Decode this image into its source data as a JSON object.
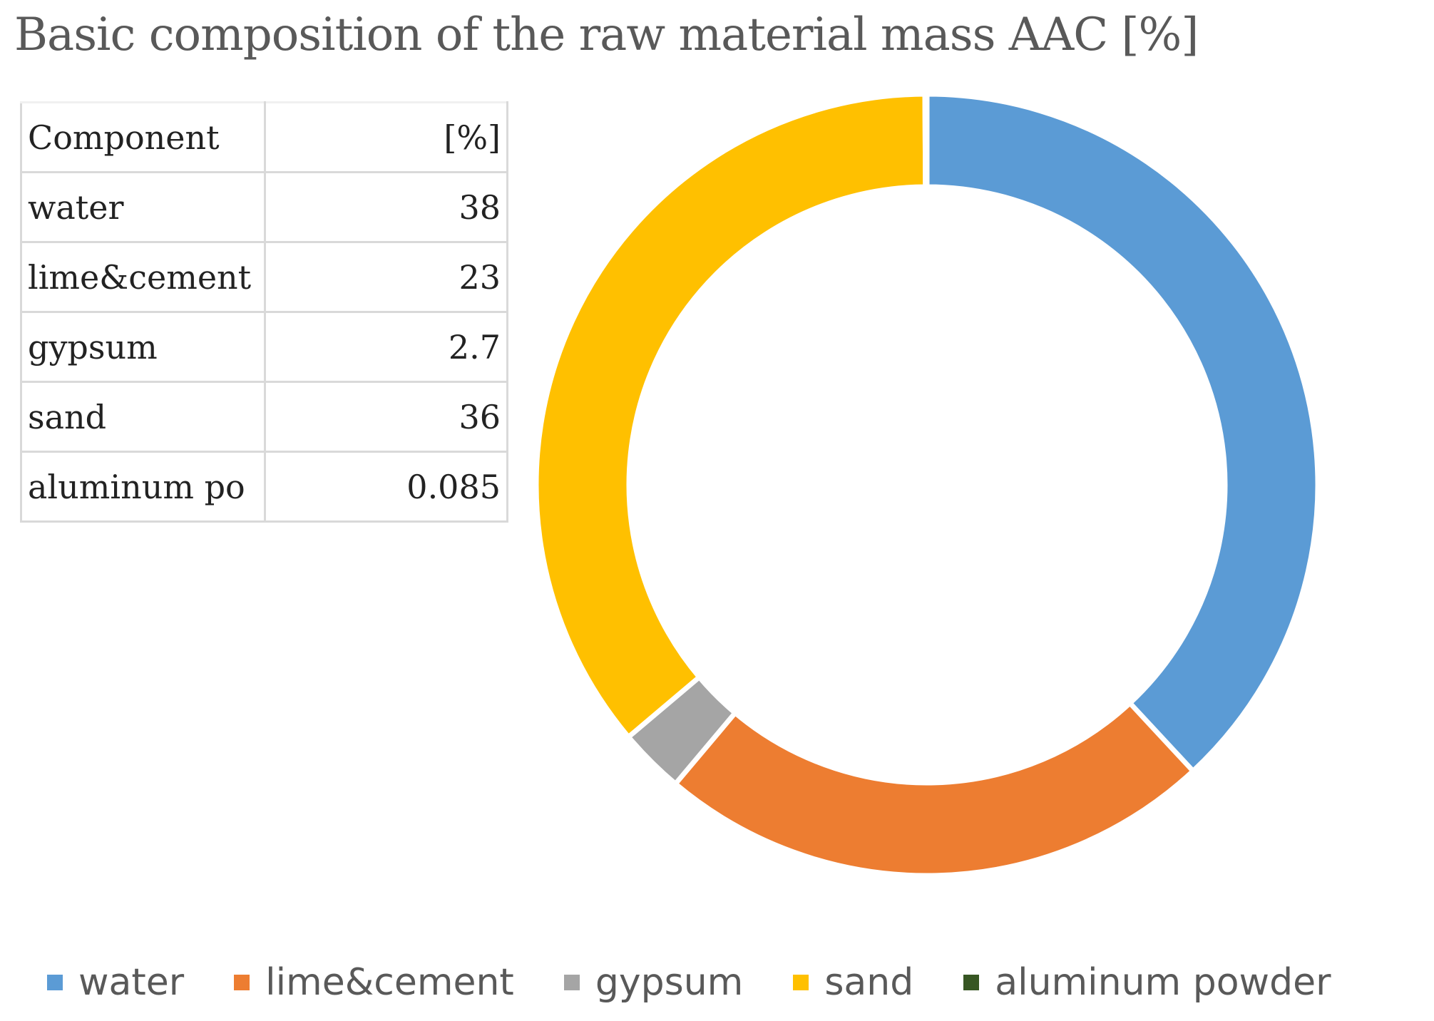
{
  "chart_data": {
    "type": "pie",
    "title": "Basic composition of the raw material mass AAC [%]",
    "table": {
      "header": [
        "Component",
        "[%]"
      ],
      "rows": [
        {
          "name": "water",
          "value": "38"
        },
        {
          "name": "lime&cement",
          "value": "23"
        },
        {
          "name": "gypsum",
          "value": "2.7"
        },
        {
          "name": "sand",
          "value": "36"
        },
        {
          "name": "aluminum po",
          "value": "0.085"
        }
      ]
    },
    "slices": [
      {
        "name": "water",
        "value": 38,
        "color": "#5b9bd5"
      },
      {
        "name": "lime&cement",
        "value": 23,
        "color": "#ed7d31"
      },
      {
        "name": "gypsum",
        "value": 2.7,
        "color": "#a5a5a5"
      },
      {
        "name": "sand",
        "value": 36,
        "color": "#ffc000"
      },
      {
        "name": "aluminum powder",
        "value": 0.085,
        "color": "#375623"
      }
    ],
    "legend_position": "bottom"
  }
}
